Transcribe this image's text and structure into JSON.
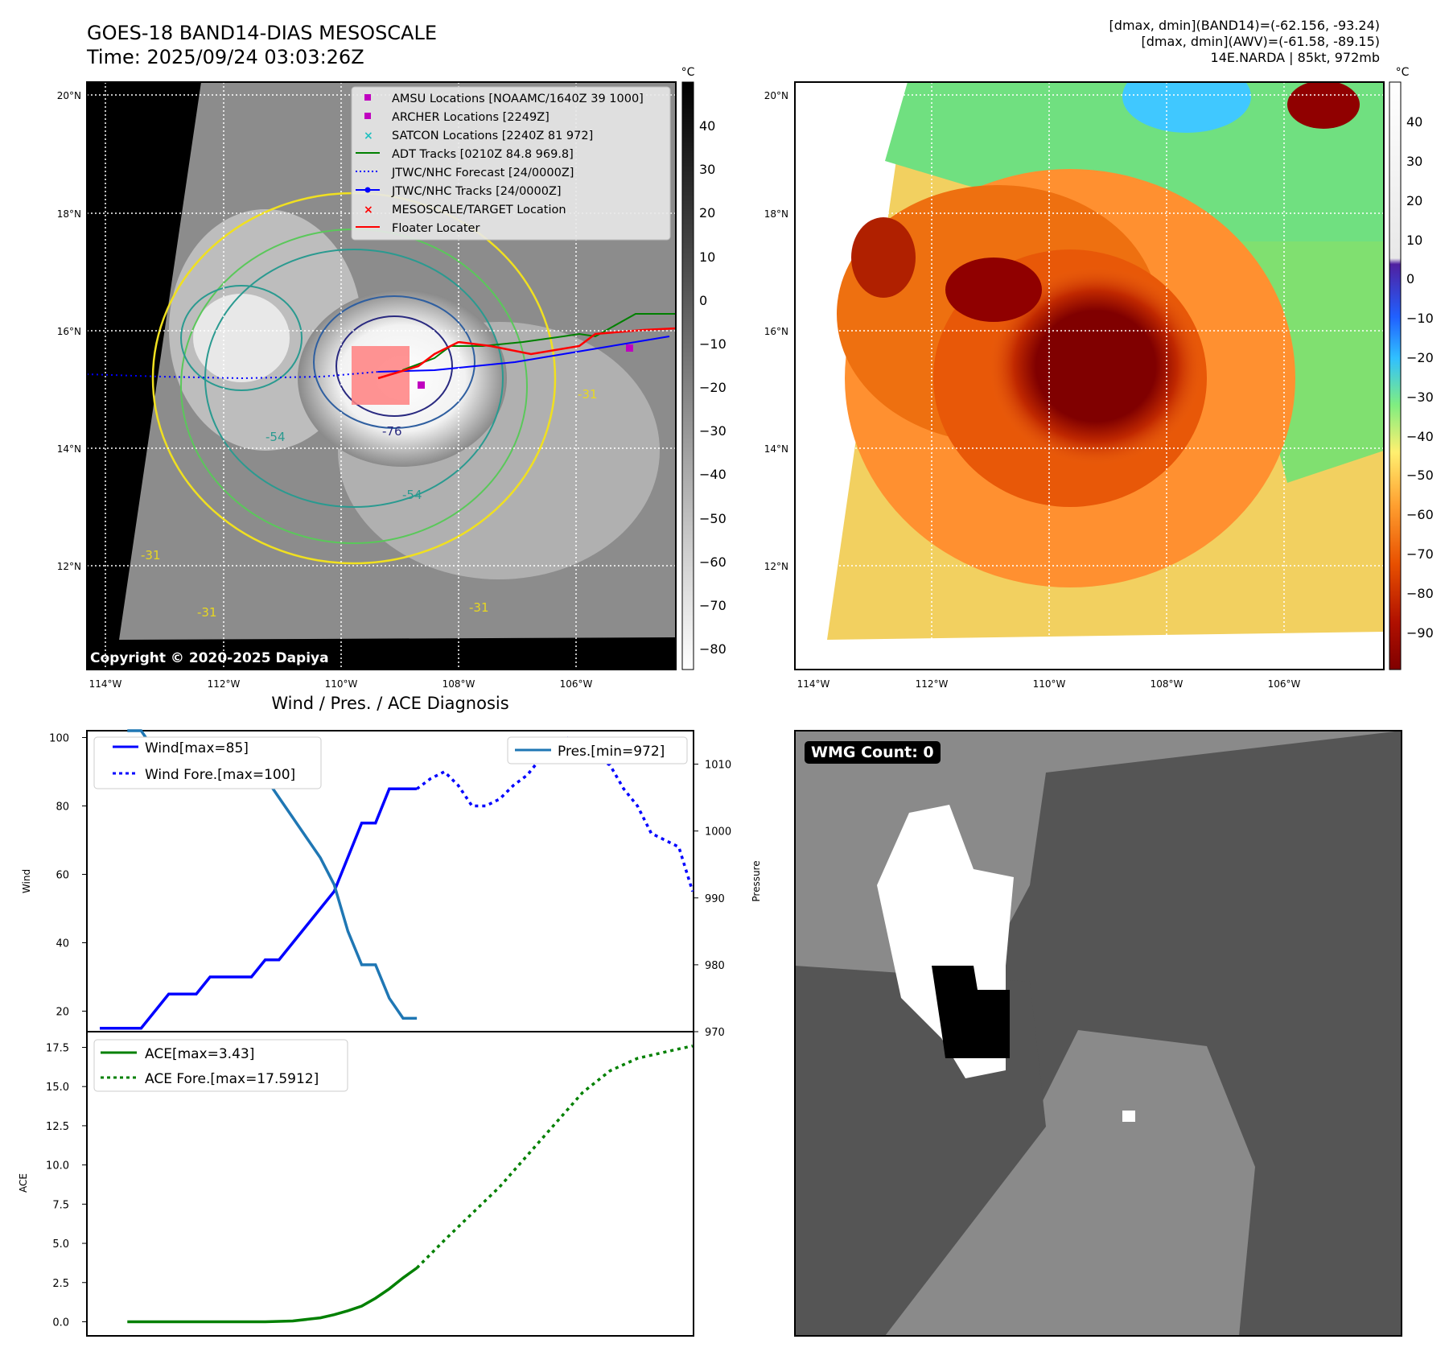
{
  "header": {
    "title_line1": "GOES-18 BAND14-DIAS MESOSCALE",
    "title_line2": "Time: 2025/09/24 03:03:26Z",
    "right_line1": "[dmax, dmin](BAND14)=(-62.156, -93.24)",
    "right_line2": "[dmax, dmin](AWV)=(-61.58, -89.15)",
    "right_line3": "14E.NARDA | 85kt, 972mb"
  },
  "maps": {
    "lat_labels": [
      "20°N",
      "18°N",
      "16°N",
      "14°N",
      "12°N"
    ],
    "lon_labels": [
      "114°W",
      "112°W",
      "110°W",
      "108°W",
      "106°W"
    ],
    "copyright": "Copyright © 2020-2025 Dapiya",
    "left_colorbar": {
      "unit": "°C",
      "ticks": [
        "40",
        "30",
        "20",
        "10",
        "0",
        "−10",
        "−20",
        "−30",
        "−40",
        "−50",
        "−60",
        "−70",
        "−80"
      ]
    },
    "right_colorbar": {
      "unit": "°C",
      "ticks": [
        "40",
        "30",
        "20",
        "10",
        "0",
        "−10",
        "−20",
        "−30",
        "−40",
        "−50",
        "−60",
        "−70",
        "−80",
        "−90"
      ]
    },
    "contour_labels": [
      "-76",
      "-31",
      "-54",
      "-31",
      "-31",
      "-54",
      "-31"
    ],
    "legend": [
      {
        "label": "AMSU Locations [NOAAMC/1640Z 39 1000]",
        "color": "#c000c0",
        "marker": "square"
      },
      {
        "label": "ARCHER Locations [2249Z]",
        "color": "#c000c0",
        "marker": "square"
      },
      {
        "label": "SATCON Locations [2240Z 81 972]",
        "color": "#20c0c0",
        "marker": "x"
      },
      {
        "label": "ADT Tracks [0210Z 84.8 969.8]",
        "color": "#008000",
        "marker": "line"
      },
      {
        "label": "JTWC/NHC Forecast [24/0000Z]",
        "color": "#0000ff",
        "marker": "dotted"
      },
      {
        "label": "JTWC/NHC Tracks [24/0000Z]",
        "color": "#0000ff",
        "marker": "line-dot"
      },
      {
        "label": "MESOSCALE/TARGET Location",
        "color": "#ff0000",
        "marker": "x"
      },
      {
        "label": "Floater Locater",
        "color": "#ff0000",
        "marker": "line"
      }
    ]
  },
  "diag_title": "Wind / Pres. / ACE Diagnosis",
  "wmg_label": "WMG Count: 0",
  "chart_data": [
    {
      "type": "line",
      "ylabel": "Wind",
      "y2label": "Pressure",
      "ylim": [
        14,
        102
      ],
      "y2lim": [
        970,
        1015
      ],
      "yticks": [
        20,
        40,
        60,
        80,
        100
      ],
      "y2ticks": [
        970,
        980,
        990,
        1000,
        1010
      ],
      "x_range": [
        0,
        44
      ],
      "series": [
        {
          "name": "Wind[max=85]",
          "style": "solid",
          "color": "#0000ff",
          "axis": "left",
          "x": [
            0,
            1,
            2,
            3,
            4,
            5,
            6,
            7,
            8,
            9,
            10,
            11,
            12,
            13,
            14,
            15,
            16,
            17,
            18,
            19,
            20,
            21,
            22,
            23
          ],
          "values": [
            15,
            15,
            15,
            15,
            20,
            25,
            25,
            25,
            30,
            30,
            30,
            30,
            35,
            35,
            40,
            45,
            50,
            55,
            65,
            75,
            75,
            85,
            85,
            85
          ]
        },
        {
          "name": "Wind Fore.[max=100]",
          "style": "dotted",
          "color": "#0000ff",
          "axis": "left",
          "x": [
            23,
            24,
            25,
            26,
            27,
            28,
            29,
            30,
            31,
            32,
            33,
            34,
            35,
            36,
            37,
            38,
            39,
            40,
            41,
            42,
            43
          ],
          "values": [
            85,
            88,
            90,
            86,
            80,
            80,
            82,
            86,
            89,
            94,
            97,
            100,
            96,
            94,
            92,
            85,
            80,
            72,
            70,
            68,
            55
          ]
        },
        {
          "name": "Pres.[min=972]",
          "style": "solid",
          "color": "#1f77b4",
          "axis": "right",
          "x": [
            2,
            3,
            4,
            5,
            6,
            7,
            8,
            9,
            10,
            11,
            12,
            13,
            14,
            15,
            16,
            17,
            18,
            19,
            20,
            21,
            22,
            23
          ],
          "values": [
            1015,
            1015,
            1012,
            1010,
            1010,
            1010,
            1010,
            1010,
            1010,
            1008,
            1008,
            1005,
            1002,
            999,
            996,
            992,
            985,
            980,
            980,
            975,
            972,
            972
          ]
        }
      ]
    },
    {
      "type": "line",
      "ylabel": "ACE",
      "ylim": [
        -0.9,
        18.5
      ],
      "yticks": [
        "0.0",
        "2.5",
        "5.0",
        "7.5",
        "10.0",
        "12.5",
        "15.0",
        "17.5"
      ],
      "x_range": [
        0,
        44
      ],
      "series": [
        {
          "name": "ACE[max=3.43]",
          "style": "solid",
          "color": "#008000",
          "x": [
            2,
            4,
            6,
            8,
            10,
            12,
            14,
            16,
            17,
            18,
            19,
            20,
            21,
            22,
            23
          ],
          "values": [
            0,
            0,
            0,
            0,
            0,
            0,
            0.05,
            0.25,
            0.45,
            0.7,
            1.0,
            1.5,
            2.1,
            2.8,
            3.43
          ]
        },
        {
          "name": "ACE Fore.[max=17.5912]",
          "style": "dotted",
          "color": "#008000",
          "x": [
            23,
            25,
            27,
            29,
            31,
            33,
            35,
            37,
            39,
            41,
            42,
            43
          ],
          "values": [
            3.43,
            5.2,
            6.9,
            8.6,
            10.6,
            12.6,
            14.6,
            16.0,
            16.8,
            17.2,
            17.4,
            17.59
          ]
        }
      ]
    }
  ]
}
